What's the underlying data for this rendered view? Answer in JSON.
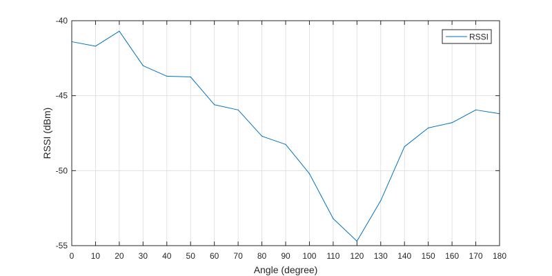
{
  "chart_data": {
    "type": "line",
    "title": "",
    "xlabel": "Angle (degree)",
    "ylabel": "RSSI (dBm)",
    "xlim": [
      0,
      180
    ],
    "ylim": [
      -55,
      -40
    ],
    "xticks": [
      0,
      10,
      20,
      30,
      40,
      50,
      60,
      70,
      80,
      90,
      100,
      110,
      120,
      130,
      140,
      150,
      160,
      170,
      180
    ],
    "yticks": [
      -40,
      -45,
      -50,
      -55
    ],
    "grid": true,
    "legend_position": "top-right",
    "x": [
      0,
      10,
      20,
      30,
      40,
      50,
      60,
      70,
      80,
      90,
      100,
      110,
      120,
      130,
      140,
      150,
      160,
      170,
      180
    ],
    "series": [
      {
        "name": "RSSI",
        "color": "#0072BD",
        "values": [
          -41.4,
          -41.7,
          -40.7,
          -43.0,
          -43.7,
          -43.75,
          -45.6,
          -45.95,
          -47.7,
          -48.25,
          -50.2,
          -53.2,
          -54.7,
          -52.0,
          -48.4,
          -47.15,
          -46.8,
          -45.95,
          -46.2
        ]
      }
    ]
  }
}
